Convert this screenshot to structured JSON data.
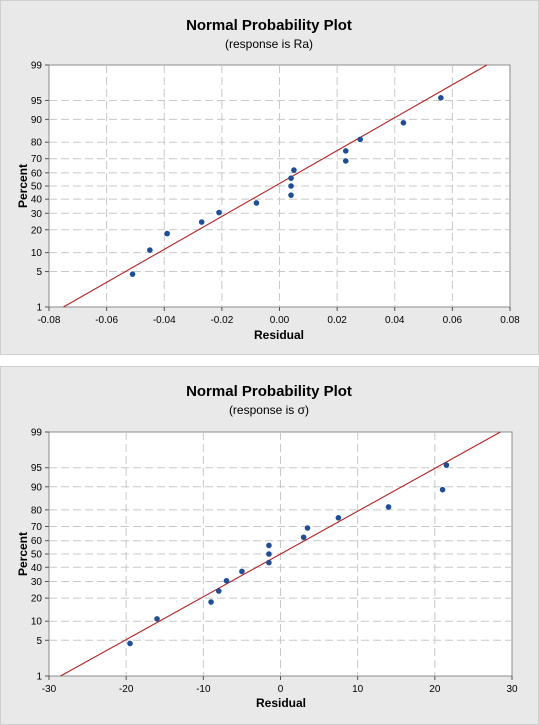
{
  "chart_data": [
    {
      "type": "scatter",
      "title": "Normal Probability Plot",
      "subtitle": "(response is Ra)",
      "xlabel": "Residual",
      "ylabel": "Percent",
      "xlim": [
        -0.08,
        0.08
      ],
      "xticks": [
        -0.08,
        -0.06,
        -0.04,
        -0.02,
        0.0,
        0.02,
        0.04,
        0.06,
        0.08
      ],
      "xtick_labels": [
        "-0.08",
        "-0.06",
        "-0.04",
        "-0.02",
        "0.00",
        "0.02",
        "0.04",
        "0.06",
        "0.08"
      ],
      "yscale": "normal-probability",
      "yticks": [
        1,
        5,
        10,
        20,
        30,
        40,
        50,
        60,
        70,
        80,
        90,
        95,
        99
      ],
      "ytick_labels": [
        "1",
        "5",
        "10",
        "20",
        "30",
        "40",
        "50",
        "60",
        "70",
        "80",
        "90",
        "95",
        "99"
      ],
      "grid": true,
      "points": [
        {
          "x": -0.051,
          "y": 4.5
        },
        {
          "x": -0.045,
          "y": 10.9
        },
        {
          "x": -0.039,
          "y": 18.0
        },
        {
          "x": -0.027,
          "y": 24.4
        },
        {
          "x": -0.021,
          "y": 30.5
        },
        {
          "x": -0.008,
          "y": 37.2
        },
        {
          "x": 0.004,
          "y": 43.0
        },
        {
          "x": 0.004,
          "y": 50.0
        },
        {
          "x": 0.004,
          "y": 56.0
        },
        {
          "x": 0.005,
          "y": 62.0
        },
        {
          "x": 0.023,
          "y": 68.5
        },
        {
          "x": 0.023,
          "y": 75.0
        },
        {
          "x": 0.028,
          "y": 81.5
        },
        {
          "x": 0.043,
          "y": 88.8
        },
        {
          "x": 0.056,
          "y": 95.5
        }
      ],
      "fit_line": {
        "x": [
          -0.075,
          0.072
        ],
        "y": [
          1,
          99
        ]
      },
      "colors": {
        "points": "#1f4e96",
        "fit_line": "#b22222",
        "plot_bg": "#ffffff",
        "panel_bg": "#e9e9e9",
        "grid": "#c8c8c8"
      }
    },
    {
      "type": "scatter",
      "title": "Normal Probability Plot",
      "subtitle": "(response is σ)",
      "xlabel": "Residual",
      "ylabel": "Percent",
      "xlim": [
        -30,
        30
      ],
      "xticks": [
        -30,
        -20,
        -10,
        0,
        10,
        20,
        30
      ],
      "xtick_labels": [
        "-30",
        "-20",
        "-10",
        "0",
        "10",
        "20",
        "30"
      ],
      "yscale": "normal-probability",
      "yticks": [
        1,
        5,
        10,
        20,
        30,
        40,
        50,
        60,
        70,
        80,
        90,
        95,
        99
      ],
      "ytick_labels": [
        "1",
        "5",
        "10",
        "20",
        "30",
        "40",
        "50",
        "60",
        "70",
        "80",
        "90",
        "95",
        "99"
      ],
      "grid": true,
      "points": [
        {
          "x": -19.5,
          "y": 4.4
        },
        {
          "x": -16.0,
          "y": 10.8
        },
        {
          "x": -9.0,
          "y": 18.0
        },
        {
          "x": -8.0,
          "y": 24.0
        },
        {
          "x": -7.0,
          "y": 30.5
        },
        {
          "x": -5.0,
          "y": 37.0
        },
        {
          "x": -1.5,
          "y": 43.5
        },
        {
          "x": -1.5,
          "y": 50.0
        },
        {
          "x": -1.5,
          "y": 56.5
        },
        {
          "x": 3.0,
          "y": 62.5
        },
        {
          "x": 3.5,
          "y": 69.0
        },
        {
          "x": 7.5,
          "y": 75.5
        },
        {
          "x": 14.0,
          "y": 81.5
        },
        {
          "x": 21.0,
          "y": 89.0
        },
        {
          "x": 21.5,
          "y": 95.5
        }
      ],
      "fit_line": {
        "x": [
          -28.5,
          28.5
        ],
        "y": [
          1,
          99
        ]
      },
      "colors": {
        "points": "#1f4e96",
        "fit_line": "#b22222",
        "plot_bg": "#ffffff",
        "panel_bg": "#e9e9e9",
        "grid": "#c8c8c8"
      }
    }
  ]
}
